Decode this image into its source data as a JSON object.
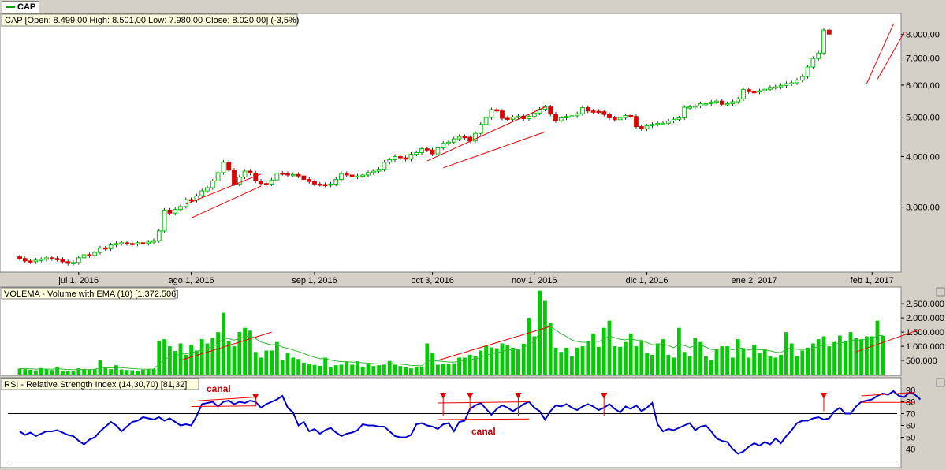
{
  "tab": {
    "label": "CAP",
    "color": "#00a000"
  },
  "price_panel": {
    "title": "CAP [Open: 8.499,00  High: 8.501,00  Low: 7.980,00  Close: 8.020,00] (-3,5%)",
    "y_ticks": [
      {
        "label": "8.000,00",
        "v": 8000
      },
      {
        "label": "7.000,00",
        "v": 7000
      },
      {
        "label": "6.000,00",
        "v": 6000
      },
      {
        "label": "5.000,00",
        "v": 5000
      },
      {
        "label": "4.000,00",
        "v": 4000
      },
      {
        "label": "3.000,00",
        "v": 3000
      }
    ],
    "x_ticks": [
      {
        "label": "jul 1, 2016",
        "i": 11
      },
      {
        "label": "ago 1, 2016",
        "i": 32
      },
      {
        "label": "sep 1, 2016",
        "i": 55
      },
      {
        "label": "oct 3, 2016",
        "i": 77
      },
      {
        "label": "nov 1, 2016",
        "i": 96
      },
      {
        "label": "dic 1, 2016",
        "i": 117
      },
      {
        "label": "ene 2, 2017",
        "i": 137
      },
      {
        "label": "feb 1, 2017",
        "i": 159
      }
    ]
  },
  "volume_panel": {
    "title": "VOLEMA - Volume with EMA (10) [1.372.506]",
    "y_ticks": [
      {
        "label": "2.500.000",
        "v": 2500000
      },
      {
        "label": "2.000.000",
        "v": 2000000
      },
      {
        "label": "1.500.000",
        "v": 1500000
      },
      {
        "label": "1.000.000",
        "v": 1000000
      },
      {
        "label": "500.000",
        "v": 500000
      }
    ]
  },
  "rsi_panel": {
    "title": "RSI - Relative Strength Index (14,30,70) [81,32]",
    "y_ticks": [
      {
        "label": "90",
        "v": 90
      },
      {
        "label": "80",
        "v": 80
      },
      {
        "label": "70",
        "v": 70
      },
      {
        "label": "60",
        "v": 60
      },
      {
        "label": "50",
        "v": 50
      },
      {
        "label": "40",
        "v": 40
      }
    ],
    "annotations": [
      {
        "text": "canal",
        "color": "#cc0000"
      },
      {
        "text": "canal",
        "color": "#cc0000"
      }
    ]
  },
  "colors": {
    "up": "#00c000",
    "down": "#dd0000",
    "volume_bar": "#00cc00",
    "ema": "#33bb33",
    "rsi": "#0000cc",
    "trend": "#ee0000",
    "bg": "#ffffff",
    "frame": "#d4d0c8"
  },
  "chart_data": [
    {
      "type": "candlestick",
      "title": "CAP [Open: 8.499,00  High: 8.501,00  Low: 7.980,00  Close: 8.020,00] (-3,5%)",
      "y_scale": "log",
      "ylim": [
        2150,
        8700
      ],
      "closes": [
        2240,
        2210,
        2200,
        2220,
        2230,
        2250,
        2240,
        2230,
        2200,
        2180,
        2190,
        2250,
        2290,
        2280,
        2320,
        2380,
        2370,
        2420,
        2440,
        2450,
        2440,
        2430,
        2450,
        2440,
        2460,
        2480,
        2620,
        2950,
        2900,
        2960,
        3010,
        3130,
        3120,
        3200,
        3290,
        3350,
        3480,
        3650,
        3870,
        3700,
        3420,
        3560,
        3680,
        3640,
        3480,
        3430,
        3420,
        3500,
        3640,
        3630,
        3600,
        3610,
        3580,
        3510,
        3470,
        3420,
        3410,
        3400,
        3420,
        3510,
        3630,
        3600,
        3560,
        3580,
        3600,
        3650,
        3680,
        3720,
        3870,
        3930,
        4000,
        3970,
        3940,
        4050,
        4090,
        4180,
        4150,
        4060,
        4200,
        4310,
        4340,
        4420,
        4480,
        4460,
        4370,
        4560,
        4800,
        4990,
        5220,
        5180,
        4970,
        4940,
        5000,
        5030,
        4960,
        5020,
        5120,
        5230,
        5300,
        5090,
        4900,
        4980,
        5020,
        5040,
        5100,
        5280,
        5180,
        5170,
        5160,
        5080,
        4980,
        4930,
        4990,
        5050,
        5020,
        4740,
        4680,
        4760,
        4800,
        4830,
        4830,
        4890,
        4940,
        4980,
        5290,
        5300,
        5330,
        5400,
        5400,
        5450,
        5480,
        5380,
        5400,
        5460,
        5550,
        5850,
        5780,
        5770,
        5810,
        5860,
        5920,
        5940,
        5990,
        6050,
        6080,
        6170,
        6300,
        6650,
        6980,
        7200,
        8200,
        8020
      ],
      "open_close_high_low": "estimated from candles"
    },
    {
      "type": "bar",
      "title": "VOLEMA - Volume with EMA (10) [1.372.506]",
      "ylim": [
        0,
        2950000
      ],
      "values": [
        210000,
        190000,
        170000,
        150000,
        230000,
        180000,
        160000,
        280000,
        140000,
        120000,
        130000,
        220000,
        180000,
        170000,
        200000,
        520000,
        250000,
        190000,
        330000,
        180000,
        160000,
        150000,
        140000,
        170000,
        190000,
        200000,
        1200000,
        1250000,
        1000000,
        830000,
        1100000,
        700000,
        1050000,
        850000,
        1250000,
        1100000,
        1300000,
        1500000,
        2180000,
        1200000,
        1000000,
        1500000,
        1650000,
        1550000,
        800000,
        600000,
        850000,
        850000,
        1150000,
        520000,
        750000,
        600000,
        550000,
        420000,
        380000,
        340000,
        310000,
        600000,
        270000,
        330000,
        350000,
        460000,
        350000,
        470000,
        280000,
        380000,
        300000,
        330000,
        350000,
        480000,
        350000,
        300000,
        250000,
        220000,
        280000,
        280000,
        1100000,
        750000,
        350000,
        380000,
        380000,
        400000,
        600000,
        600000,
        700000,
        650000,
        850000,
        1020000,
        960000,
        930000,
        1100000,
        1030000,
        950000,
        870000,
        1090000,
        2000000,
        1350000,
        2960000,
        2600000,
        1820000,
        950000,
        800000,
        950000,
        650000,
        950000,
        1000000,
        1200000,
        1450000,
        980000,
        1650000,
        1900000,
        1000000,
        980000,
        1150000,
        1450000,
        1000000,
        1200000,
        750000,
        700000,
        1100000,
        1250000,
        700000,
        600000,
        1650000,
        800000,
        650000,
        1300000,
        1150000,
        650000,
        500000,
        900000,
        1000000,
        1000000,
        600000,
        1250000,
        900000,
        600000,
        1050000,
        750000,
        900000,
        650000,
        600000,
        700000,
        1500000,
        1100000,
        650000,
        850000,
        950000,
        1100000,
        1250000,
        1350000,
        1000000,
        1150000,
        1380000,
        1200000,
        1500000,
        1280000,
        1250000,
        1350000,
        1350000,
        1900000,
        1370000
      ],
      "series": [
        {
          "name": "VOLEMA",
          "type": "line",
          "values": "EMA(10) of volume"
        }
      ]
    },
    {
      "type": "line",
      "title": "RSI - Relative Strength Index (14,30,70) [81,32]",
      "ylim": [
        27,
        95
      ],
      "hlines": [
        70,
        30
      ],
      "values": [
        55,
        52,
        54,
        51,
        53,
        55,
        55,
        56,
        54,
        52,
        51,
        47,
        44,
        48,
        50,
        55,
        59,
        63,
        60,
        55,
        59,
        63,
        64,
        67,
        66,
        65,
        67,
        64,
        66,
        63,
        60,
        61,
        60,
        68,
        78,
        79,
        80,
        76,
        80,
        81,
        78,
        80,
        79,
        81,
        80,
        75,
        78,
        80,
        82,
        85,
        75,
        71,
        60,
        63,
        55,
        57,
        53,
        56,
        58,
        54,
        51,
        53,
        54,
        56,
        61,
        60,
        60,
        59,
        59,
        55,
        51,
        50,
        50,
        52,
        61,
        62,
        60,
        59,
        57,
        61,
        62,
        55,
        63,
        64,
        74,
        77,
        79,
        74,
        69,
        74,
        77,
        75,
        72,
        75,
        78,
        80,
        75,
        72,
        65,
        72,
        77,
        76,
        78,
        75,
        73,
        76,
        78,
        76,
        73,
        75,
        78,
        74,
        71,
        76,
        74,
        77,
        72,
        75,
        79,
        61,
        55,
        57,
        56,
        58,
        60,
        62,
        56,
        59,
        60,
        55,
        49,
        47,
        46,
        40,
        36,
        38,
        42,
        45,
        43,
        46,
        44,
        49,
        45,
        51,
        56,
        62,
        64,
        64,
        66,
        67,
        65,
        66,
        72,
        75,
        70,
        70,
        76,
        80,
        81,
        82,
        85,
        87,
        86,
        89,
        85,
        84,
        88,
        86,
        82
      ]
    }
  ]
}
